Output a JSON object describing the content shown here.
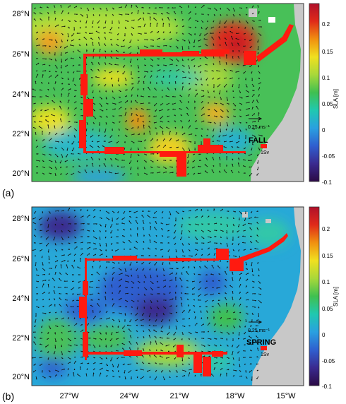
{
  "panels": [
    {
      "panel_label": "(a)",
      "season": "FALL",
      "lat_ticks": [
        "28°N",
        "26°N",
        "24°N",
        "22°N",
        "20°N"
      ],
      "colorbar": {
        "title": "SLA [m]",
        "ticks": [
          "0.2",
          "0.15",
          "0.1",
          "0.05",
          "0",
          "-0.05",
          "-0.1"
        ]
      },
      "velocity_scale": "0.25 ms⁻¹",
      "transport_scale": "1Sv"
    },
    {
      "panel_label": "(b)",
      "season": "SPRING",
      "lat_ticks": [
        "28°N",
        "26°N",
        "24°N",
        "22°N",
        "20°N"
      ],
      "colorbar": {
        "title": "SLA [m]",
        "ticks": [
          "0.2",
          "0.15",
          "0.1",
          "0.05",
          "0",
          "-0.05",
          "-0.1"
        ]
      },
      "velocity_scale": "0.25 ms⁻¹",
      "transport_scale": "1Sv"
    }
  ],
  "lon_ticks": [
    "27°W",
    "24°W",
    "21°W",
    "18°W",
    "15°W"
  ],
  "colors": {
    "colormap": [
      "#2b0a45",
      "#3a2a8f",
      "#2f5fcf",
      "#2aa0e0",
      "#20c8b0",
      "#40c050",
      "#a8d83a",
      "#f0e020",
      "#f09010",
      "#e02a1a",
      "#b0102a"
    ],
    "land": "#c8c8c8",
    "transport_bar": "#ff1a10"
  }
}
